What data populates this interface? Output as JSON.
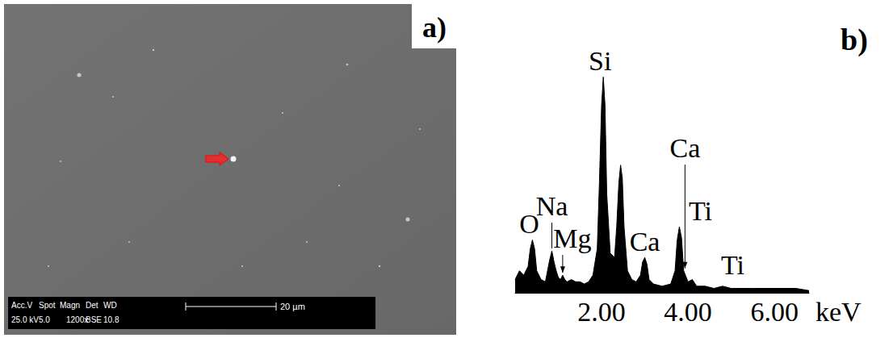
{
  "micrograph": {
    "panel_label": "a)",
    "info_header": [
      "Acc.V",
      "Spot",
      "Magn",
      "Det",
      "WD"
    ],
    "info_values": [
      "25.0 kV",
      "5.0",
      "1200x",
      "BSE",
      "10.8"
    ],
    "scale_bar": "20 µm"
  },
  "chart_data": {
    "type": "area",
    "panel_label": "b)",
    "x_label": "keV",
    "color": "#000000",
    "x": [
      0.0,
      0.1,
      0.2,
      0.3,
      0.35,
      0.4,
      0.45,
      0.5,
      0.6,
      0.7,
      0.8,
      0.85,
      0.9,
      0.95,
      1.0,
      1.05,
      1.1,
      1.15,
      1.2,
      1.3,
      1.4,
      1.5,
      1.6,
      1.7,
      1.8,
      1.9,
      1.95,
      2.0,
      2.04,
      2.08,
      2.12,
      2.2,
      2.3,
      2.35,
      2.4,
      2.44,
      2.48,
      2.52,
      2.6,
      2.7,
      2.8,
      2.9,
      2.95,
      3.0,
      3.05,
      3.1,
      3.2,
      3.4,
      3.6,
      3.7,
      3.75,
      3.8,
      3.85,
      3.9,
      4.0,
      4.1,
      4.2,
      4.4,
      4.6,
      4.8,
      5.0,
      5.5,
      6.0,
      6.5,
      6.8
    ],
    "values": [
      6,
      10,
      8,
      12,
      20,
      24,
      20,
      10,
      6,
      5,
      15,
      19,
      14,
      10,
      7,
      6,
      8,
      6,
      5,
      6,
      5,
      5,
      4,
      5,
      8,
      20,
      50,
      85,
      98,
      85,
      45,
      18,
      16,
      30,
      50,
      58,
      52,
      30,
      10,
      6,
      5,
      8,
      14,
      16,
      13,
      6,
      4,
      3,
      4,
      10,
      24,
      30,
      25,
      10,
      5,
      6,
      3,
      3,
      2,
      3,
      2,
      2,
      2,
      2,
      1
    ],
    "xlim": [
      0,
      6.8
    ],
    "xticks": [
      {
        "value": 2,
        "label": "2.00"
      },
      {
        "value": 4,
        "label": "4.00"
      },
      {
        "value": 6,
        "label": "6.00"
      }
    ],
    "ylim": [
      0,
      100
    ],
    "tick_labels": "x",
    "grid": false,
    "annotations": [
      {
        "text": "O",
        "x": 0.4
      },
      {
        "text": "Na",
        "x": 0.85
      },
      {
        "text": "Mg",
        "x": 1.1
      },
      {
        "text": "Si",
        "x": 2.04
      },
      {
        "text": "Ca",
        "x": 3.0
      },
      {
        "text": "Ca",
        "x": 3.93
      },
      {
        "text": "Ti",
        "x": 3.8
      },
      {
        "text": "Ti",
        "x": 4.1
      }
    ]
  }
}
